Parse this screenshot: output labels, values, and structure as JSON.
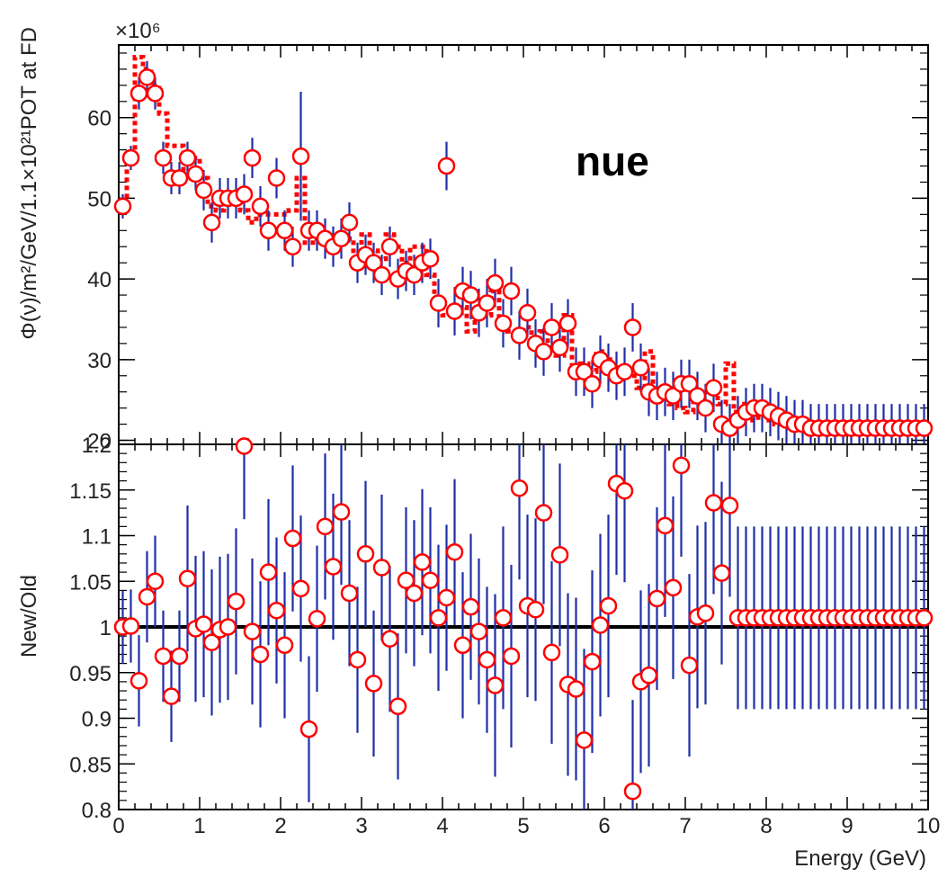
{
  "colors": {
    "marker": "#ff0000",
    "error_bar": "#1f2fa8",
    "reference_line": "#000000",
    "frame": "#000000",
    "old_flux": "#ff0000"
  },
  "chart_data": [
    {
      "type": "scatter",
      "panel": "top",
      "ylabel": "Φ(ν)/m²/GeV/1.1×10²¹POT at FD",
      "multiplier_label": "×10⁶",
      "annotation": "nue",
      "xlim": [
        0,
        10
      ],
      "ylim": [
        19.5,
        69
      ],
      "x_ticks": [
        0,
        1,
        2,
        3,
        4,
        5,
        6,
        7,
        8,
        9,
        10
      ],
      "y_tick_labels": [
        "20",
        "30",
        "40",
        "50",
        "60"
      ],
      "grid": false,
      "series": [
        {
          "marker": "open-circle",
          "x": [
            0.05,
            0.15,
            0.25,
            0.35,
            0.45,
            0.55,
            0.65,
            0.75,
            0.85,
            0.95,
            1.05,
            1.15,
            1.25,
            1.35,
            1.45,
            1.55,
            1.65,
            1.75,
            1.85,
            1.95,
            2.05,
            2.15,
            2.25,
            2.35,
            2.45,
            2.55,
            2.65,
            2.75,
            2.85,
            2.95,
            3.05,
            3.15,
            3.25,
            3.35,
            3.45,
            3.55,
            3.65,
            3.75,
            3.85,
            3.95,
            4.05,
            4.15,
            4.25,
            4.35,
            4.45,
            4.55,
            4.65,
            4.75,
            4.85,
            4.95,
            5.05,
            5.15,
            5.25,
            5.35,
            5.45,
            5.55,
            5.65,
            5.75,
            5.85,
            5.95,
            6.05,
            6.15,
            6.25,
            6.35,
            6.45,
            6.55,
            6.65,
            6.75,
            6.85,
            6.95,
            7.05,
            7.15,
            7.25,
            7.35,
            7.45,
            7.55,
            7.65,
            7.75,
            7.85,
            7.95,
            8.05,
            8.15,
            8.25,
            8.35,
            8.45,
            8.55,
            8.65,
            8.75,
            8.85,
            8.95,
            9.05,
            9.15,
            9.25,
            9.35,
            9.45,
            9.55,
            9.65,
            9.75,
            9.85,
            9.95
          ],
          "y": [
            49,
            55,
            63,
            65,
            63,
            55,
            52.5,
            52.5,
            55,
            53,
            51,
            47,
            50,
            50,
            50,
            50.5,
            55,
            49,
            46,
            52.5,
            46,
            44,
            55.2,
            46,
            46,
            45,
            44,
            45,
            47,
            42,
            43,
            42,
            40.5,
            44,
            40,
            41,
            40.5,
            42,
            42.5,
            37,
            54,
            36,
            38.5,
            38,
            35.8,
            37,
            39.5,
            34.5,
            38.5,
            33,
            35.8,
            32,
            31,
            34,
            31.5,
            34.5,
            28.5,
            28.5,
            27,
            30,
            29,
            28,
            28.5,
            34,
            29,
            26,
            25.5,
            26,
            25.5,
            27,
            27,
            25.5,
            24,
            26.5,
            22,
            21.5,
            22.5,
            23.5,
            24,
            24,
            23.5,
            23,
            22.5,
            22,
            22,
            21.5,
            21.5,
            21.5,
            21.5,
            21.5,
            21.5,
            21.5,
            21.5,
            21.5,
            21.5,
            21.5,
            21.5,
            21.5,
            21.5,
            21.5
          ],
          "yerr": [
            1.5,
            1.5,
            2.0,
            2.0,
            2.0,
            2.0,
            2.0,
            2.0,
            2.0,
            2.0,
            2.5,
            2.5,
            2.5,
            2.5,
            2.5,
            2.5,
            2.5,
            2.5,
            2.5,
            2.5,
            2.5,
            2.5,
            8.0,
            2.5,
            2.5,
            2.5,
            2.5,
            2.5,
            2.5,
            2.5,
            2.5,
            2.5,
            2.5,
            2.5,
            2.5,
            2.5,
            2.5,
            2.5,
            2.5,
            3.0,
            3.0,
            3.0,
            3.0,
            3.0,
            3.0,
            3.0,
            3.0,
            3.0,
            3.0,
            3.0,
            3.0,
            3.0,
            3.0,
            3.0,
            3.0,
            3.0,
            3.0,
            3.0,
            3.0,
            3.0,
            3.0,
            3.0,
            3.0,
            3.0,
            3.0,
            3.0,
            3.0,
            3.0,
            3.0,
            3.0,
            3.0,
            3.0,
            3.0,
            3.0,
            3.0,
            3.0,
            3.0,
            3.0,
            3.0,
            3.0,
            3.0,
            3.0,
            3.0,
            3.0,
            3.0,
            3.0,
            3.0,
            3.0,
            3.0,
            3.0,
            3.0,
            3.0,
            3.0,
            3.0,
            3.0,
            3.0,
            3.0,
            3.0,
            3.0,
            3.0
          ]
        },
        {
          "style": "dashed-step",
          "x": [
            0.0,
            0.1,
            0.2,
            0.3,
            0.4,
            0.5,
            0.6,
            0.7,
            0.8,
            0.9,
            1.0,
            1.1,
            1.2,
            1.3,
            1.4,
            1.5,
            1.6,
            1.7,
            1.8,
            1.9,
            2.0,
            2.1,
            2.2,
            2.3,
            2.4,
            2.5,
            2.6,
            2.7,
            2.8,
            2.9,
            3.0,
            3.1,
            3.2,
            3.3,
            3.4,
            3.5,
            3.6,
            3.7,
            3.8,
            3.9,
            4.0,
            4.1,
            4.2,
            4.3,
            4.4,
            4.5,
            4.6,
            4.7,
            4.8,
            4.9,
            5.0,
            5.1,
            5.2,
            5.3,
            5.4,
            5.5,
            5.6,
            5.7,
            5.8,
            5.9,
            6.0,
            6.1,
            6.2,
            6.3,
            6.4,
            6.5,
            6.6,
            6.7,
            6.8,
            6.9,
            7.0,
            7.1,
            7.2,
            7.3,
            7.4,
            7.5,
            7.6,
            7.7,
            7.8,
            7.9,
            8.0,
            8.1,
            8.2,
            8.3,
            8.4,
            8.5,
            8.6,
            8.7,
            8.8,
            8.9,
            9.0,
            9.1,
            9.2,
            9.3,
            9.4,
            9.5,
            9.6,
            9.7,
            9.8,
            9.9
          ],
          "y": [
            49,
            55,
            67.5,
            66,
            64,
            60.5,
            56.5,
            56.5,
            52.5,
            55,
            52.5,
            49,
            48.5,
            50,
            50.5,
            48.5,
            47,
            48,
            48,
            48,
            48,
            48.5,
            52.5,
            44.5,
            45,
            44.5,
            44,
            44.5,
            45,
            42,
            45.5,
            43.5,
            42.5,
            45.5,
            44,
            42,
            44,
            44,
            40.5,
            36.5,
            35.5,
            36.5,
            36.5,
            33.5,
            36,
            35.5,
            38.5,
            34.5,
            33.5,
            32.5,
            34,
            31.5,
            33.5,
            31.5,
            30.5,
            35.5,
            28.5,
            29.5,
            28.5,
            31,
            30,
            29,
            28.5,
            28,
            26.5,
            31,
            26,
            26,
            24.5,
            24,
            23.5,
            25,
            26,
            27,
            24.5,
            29.5,
            23.5,
            24.5,
            22.5,
            23.5,
            22.5,
            22,
            22,
            21.5,
            21.5,
            21.5,
            21.5,
            21.5,
            21.5,
            21.5,
            21.5,
            21.5,
            21.5,
            21.5,
            21.5,
            21.5,
            21.5,
            21.5,
            21.5,
            21.5
          ]
        }
      ]
    },
    {
      "type": "scatter",
      "panel": "bottom",
      "xlabel": "Energy (GeV)",
      "ylabel": "New/Old",
      "xlim": [
        0,
        10
      ],
      "ylim": [
        0.8,
        1.2
      ],
      "x_ticks": [
        0,
        1,
        2,
        3,
        4,
        5,
        6,
        7,
        8,
        9,
        10
      ],
      "x_tick_labels": [
        "0",
        "1",
        "2",
        "3",
        "4",
        "5",
        "6",
        "7",
        "8",
        "9",
        "10"
      ],
      "y_tick_labels": [
        "0.8",
        "0.85",
        "0.9",
        "0.95",
        "1",
        "1.05",
        "1.1",
        "1.15",
        "1.2"
      ],
      "reference_line": 1.0,
      "grid": false,
      "series": [
        {
          "marker": "open-circle",
          "x": [
            0.05,
            0.15,
            0.25,
            0.35,
            0.45,
            0.55,
            0.65,
            0.75,
            0.85,
            0.95,
            1.05,
            1.15,
            1.25,
            1.35,
            1.45,
            1.55,
            1.65,
            1.75,
            1.85,
            1.95,
            2.05,
            2.15,
            2.25,
            2.35,
            2.45,
            2.55,
            2.65,
            2.75,
            2.85,
            2.95,
            3.05,
            3.15,
            3.25,
            3.35,
            3.45,
            3.55,
            3.65,
            3.75,
            3.85,
            3.95,
            4.05,
            4.15,
            4.25,
            4.35,
            4.45,
            4.55,
            4.65,
            4.75,
            4.85,
            4.95,
            5.05,
            5.15,
            5.25,
            5.35,
            5.45,
            5.55,
            5.65,
            5.75,
            5.85,
            5.95,
            6.05,
            6.15,
            6.25,
            6.35,
            6.45,
            6.55,
            6.65,
            6.75,
            6.85,
            6.95,
            7.05,
            7.15,
            7.25,
            7.35,
            7.45,
            7.55,
            7.65,
            7.75,
            7.85,
            7.95,
            8.05,
            8.15,
            8.25,
            8.35,
            8.45,
            8.55,
            8.65,
            8.75,
            8.85,
            8.95,
            9.05,
            9.15,
            9.25,
            9.35,
            9.45,
            9.55,
            9.65,
            9.75,
            9.85,
            9.95
          ],
          "y": [
            1.0,
            1.001,
            0.941,
            1.033,
            1.05,
            0.968,
            0.924,
            0.968,
            1.053,
            0.998,
            1.003,
            0.983,
            0.997,
            1.0,
            1.028,
            1.198,
            0.995,
            0.97,
            1.06,
            1.018,
            0.98,
            1.097,
            1.042,
            0.888,
            1.009,
            1.11,
            1.066,
            1.126,
            1.037,
            0.964,
            1.08,
            0.938,
            1.065,
            0.987,
            0.913,
            1.051,
            1.037,
            1.071,
            1.051,
            1.01,
            1.032,
            1.082,
            0.98,
            1.022,
            0.995,
            0.964,
            0.936,
            1.01,
            0.968,
            1.152,
            1.023,
            1.019,
            1.125,
            0.972,
            1.079,
            0.937,
            0.932,
            0.876,
            0.962,
            1.002,
            1.023,
            1.157,
            1.149,
            0.82,
            0.94,
            0.947,
            1.031,
            1.111,
            1.043,
            1.177,
            0.958,
            1.011,
            1.015,
            1.136,
            1.059,
            1.133,
            1.01,
            1.01,
            1.01,
            1.01,
            1.01,
            1.01,
            1.01,
            1.01,
            1.01,
            1.01,
            1.01,
            1.01,
            1.01,
            1.01,
            1.01,
            1.01,
            1.01,
            1.01,
            1.01,
            1.01,
            1.01,
            1.01,
            1.01,
            1.01
          ],
          "yerr": [
            0.04,
            0.04,
            0.05,
            0.05,
            0.05,
            0.05,
            0.05,
            0.05,
            0.08,
            0.08,
            0.08,
            0.08,
            0.08,
            0.08,
            0.08,
            0.08,
            0.08,
            0.08,
            0.08,
            0.08,
            0.08,
            0.08,
            0.08,
            0.08,
            0.08,
            0.08,
            0.08,
            0.08,
            0.08,
            0.08,
            0.08,
            0.08,
            0.08,
            0.08,
            0.08,
            0.08,
            0.08,
            0.08,
            0.08,
            0.08,
            0.08,
            0.08,
            0.08,
            0.08,
            0.08,
            0.08,
            0.1,
            0.1,
            0.1,
            0.1,
            0.1,
            0.1,
            0.1,
            0.1,
            0.1,
            0.1,
            0.1,
            0.1,
            0.1,
            0.1,
            0.1,
            0.1,
            0.1,
            0.1,
            0.1,
            0.1,
            0.1,
            0.1,
            0.1,
            0.1,
            0.1,
            0.1,
            0.1,
            0.1,
            0.1,
            0.1,
            0.1,
            0.1,
            0.1,
            0.1,
            0.1,
            0.1,
            0.1,
            0.1,
            0.1,
            0.1,
            0.1,
            0.1,
            0.1,
            0.1,
            0.1,
            0.1,
            0.1,
            0.1,
            0.1,
            0.1,
            0.1,
            0.1,
            0.1,
            0.1
          ]
        }
      ]
    }
  ]
}
